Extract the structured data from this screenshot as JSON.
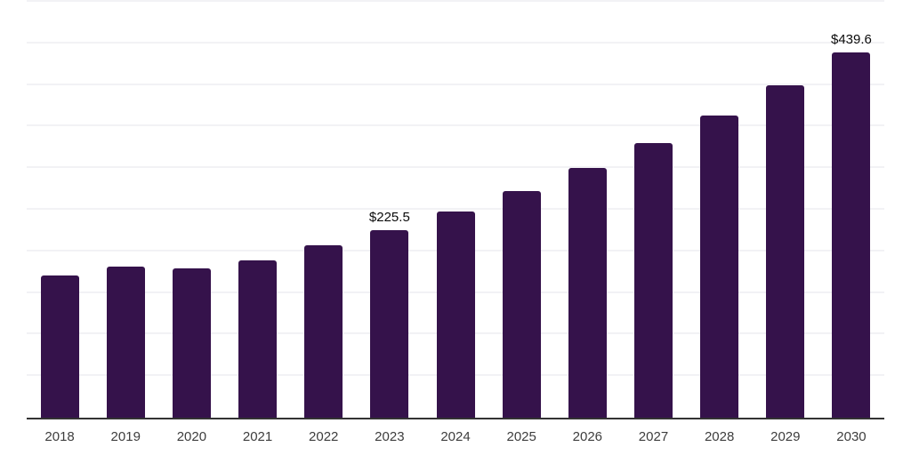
{
  "chart_data": {
    "type": "bar",
    "title": "",
    "xlabel": "",
    "ylabel": "",
    "categories": [
      "2018",
      "2019",
      "2020",
      "2021",
      "2022",
      "2023",
      "2024",
      "2025",
      "2026",
      "2027",
      "2028",
      "2029",
      "2030"
    ],
    "values": [
      171.0,
      181.6,
      179.1,
      189.4,
      207.1,
      225.5,
      248.1,
      272.9,
      300.2,
      330.2,
      363.2,
      399.6,
      439.6
    ],
    "value_prefix": "$",
    "data_labels": [
      {
        "category": "2023",
        "text": "$225.5"
      },
      {
        "category": "2030",
        "text": "$439.6"
      }
    ],
    "ylim": [
      0,
      500
    ],
    "grid_step": 50,
    "grid": "horizontal",
    "y_tick_labels_visible": false,
    "legend": "none",
    "colors": {
      "bar": "#35124b",
      "gridline": "#f2f2f5",
      "axis_line": "#333333",
      "tick_label": "#3d3d3d",
      "data_label": "#0a0a0a",
      "background": "#ffffff"
    }
  }
}
